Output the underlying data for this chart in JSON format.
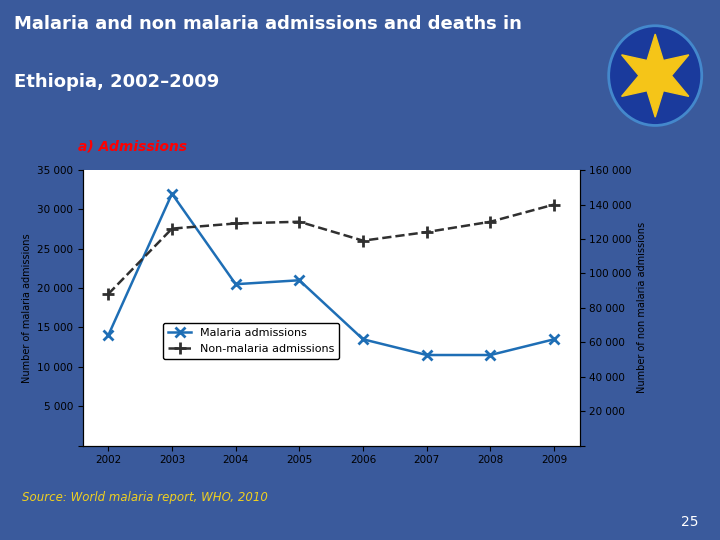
{
  "title_line1": "Malaria and non malaria admissions and deaths in",
  "title_line2": "Ethiopia, 2002–2009",
  "subtitle": "a) Admissions",
  "source": "Source: World malaria report, WHO, 2010",
  "years": [
    2002,
    2003,
    2004,
    2005,
    2006,
    2007,
    2008,
    2009
  ],
  "malaria_admissions": [
    14000,
    32000,
    20500,
    21000,
    13500,
    11500,
    11500,
    13500
  ],
  "non_malaria_vals": [
    88000,
    126000,
    129000,
    130000,
    119000,
    124000,
    130000,
    140000
  ],
  "background_slide": "#3a5a9c",
  "background_bottom": "#0a1540",
  "chart_bg": "#f0f0f0",
  "malaria_color": "#1e6eb5",
  "non_malaria_color": "#303030",
  "left_ylim": [
    0,
    35000
  ],
  "right_ylim": [
    0,
    160000
  ],
  "left_yticks": [
    0,
    5000,
    10000,
    15000,
    20000,
    25000,
    30000,
    35000
  ],
  "right_yticks": [
    0,
    20000,
    40000,
    60000,
    80000,
    100000,
    120000,
    140000,
    160000
  ],
  "page_num": "25"
}
